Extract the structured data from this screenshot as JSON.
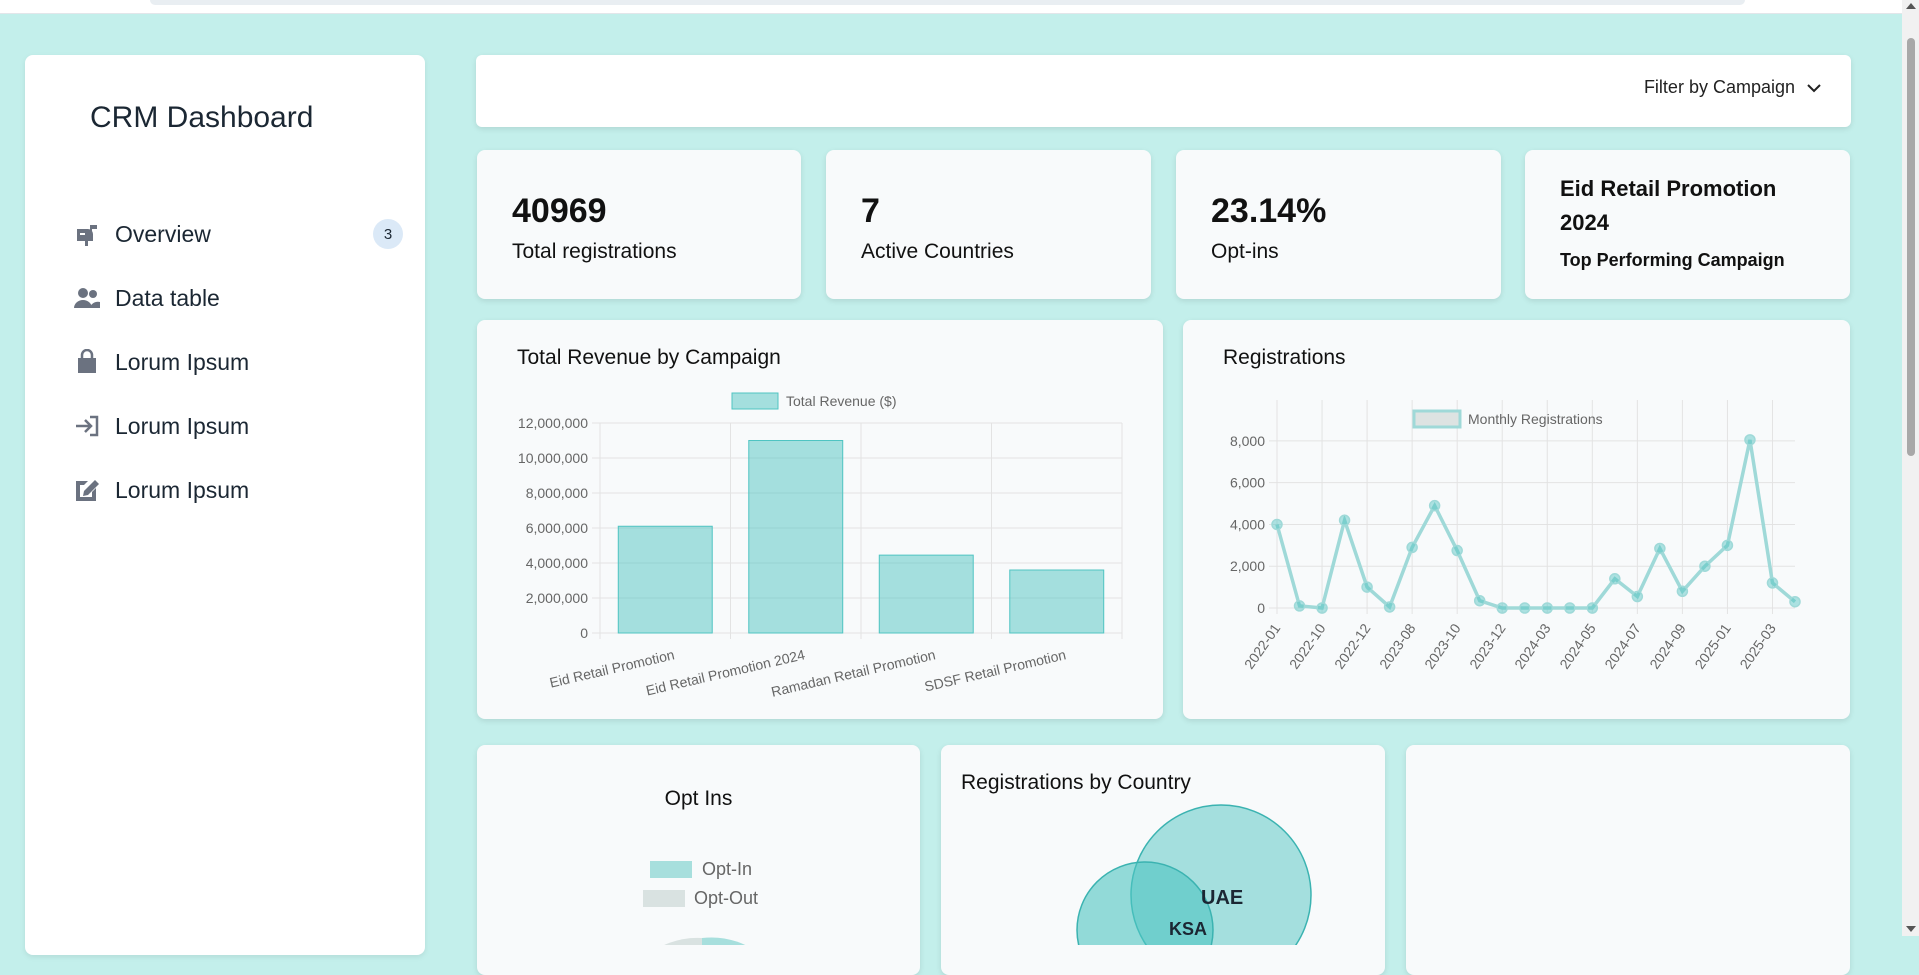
{
  "app": {
    "title": "CRM Dashboard"
  },
  "sidebar": {
    "items": [
      {
        "label": "Overview",
        "icon": "mailbox-icon",
        "badge": "3"
      },
      {
        "label": "Data table",
        "icon": "users-icon"
      },
      {
        "label": "Lorum Ipsum",
        "icon": "shopping-bag-icon"
      },
      {
        "label": "Lorum Ipsum",
        "icon": "sign-in-icon"
      },
      {
        "label": "Lorum Ipsum",
        "icon": "edit-icon"
      }
    ]
  },
  "filter": {
    "label": "Filter by Campaign"
  },
  "kpis": [
    {
      "value": "40969",
      "label": "Total registrations"
    },
    {
      "value": "7",
      "label": "Active Countries"
    },
    {
      "value": "23.14%",
      "label": "Opt-ins"
    },
    {
      "value": "Eid Retail Promotion 2024",
      "label": "Top Performing Campaign"
    }
  ],
  "colors": {
    "teal": "#4fc4c2",
    "teal_fill": "rgba(79,196,194,0.5)",
    "gray_fill": "#d9e2e1",
    "background": "#c3efeb"
  },
  "charts": {
    "revenue_title": "Total Revenue by Campaign",
    "registrations_title": "Registrations",
    "optins_title": "Opt Ins",
    "country_title": "Registrations by Country"
  },
  "chart_data": [
    {
      "type": "bar",
      "title": "Total Revenue by Campaign",
      "legend": "Total Revenue ($)",
      "categories": [
        "Eid Retail Promotion",
        "Eid Retail Promotion 2024",
        "Ramadan Retail Promotion",
        "SDSF Retail Promotion"
      ],
      "values": [
        6100000,
        11000000,
        4450000,
        3600000
      ],
      "ylim": [
        0,
        12000000
      ],
      "yticks": [
        "0",
        "2,000,000",
        "4,000,000",
        "6,000,000",
        "8,000,000",
        "10,000,000",
        "12,000,000"
      ],
      "grid": true
    },
    {
      "type": "line",
      "title": "Registrations",
      "legend": "Monthly Registrations",
      "values": [
        4000,
        100,
        0,
        4200,
        1000,
        50,
        2900,
        4900,
        2750,
        350,
        0,
        0,
        0,
        0,
        0,
        1400,
        550,
        2850,
        800,
        2000,
        3000,
        8050,
        1200,
        300
      ],
      "xticks": [
        "2022-01",
        "2022-10",
        "2022-12",
        "2023-08",
        "2023-10",
        "2023-12",
        "2024-03",
        "2024-05",
        "2024-07",
        "2024-09",
        "2025-01",
        "2025-03"
      ],
      "ylim": [
        0,
        9000
      ],
      "yticks": [
        "0",
        "2,000",
        "4,000",
        "6,000",
        "8,000"
      ],
      "grid": true
    },
    {
      "type": "pie",
      "title": "Opt Ins",
      "labels": [
        "Opt-In",
        "Opt-Out"
      ],
      "values": [
        23.14,
        76.86
      ]
    },
    {
      "type": "bubble",
      "title": "Registrations by Country",
      "labels": [
        "UAE",
        "KSA"
      ]
    }
  ]
}
